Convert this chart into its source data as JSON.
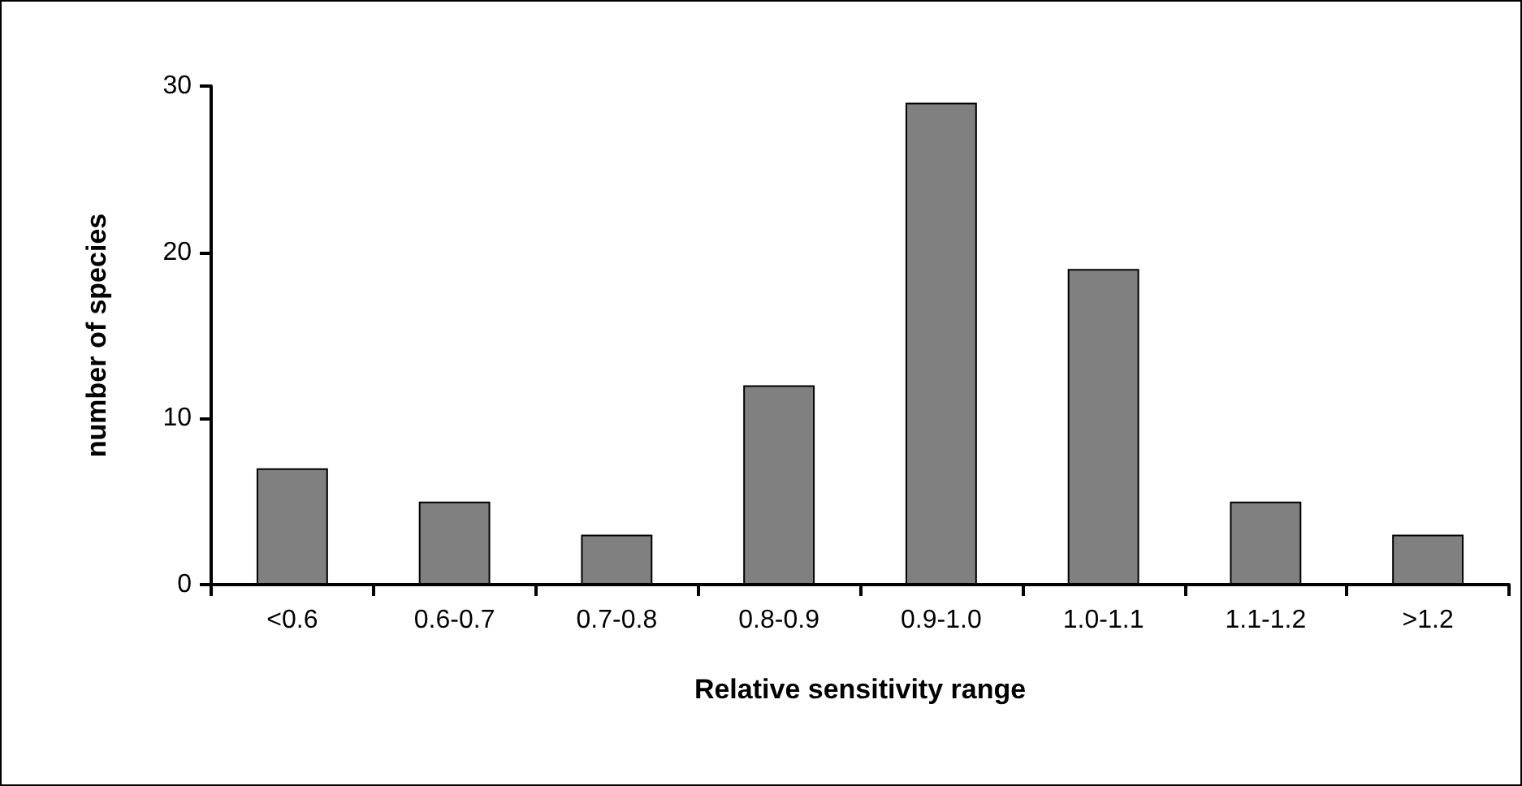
{
  "chart_data": {
    "type": "bar",
    "xlabel": "Relative sensitivity range",
    "ylabel": "number of species",
    "categories": [
      "<0.6",
      "0.6-0.7",
      "0.7-0.8",
      "0.8-0.9",
      "0.9-1.0",
      "1.0-1.1",
      "1.1-1.2",
      ">1.2"
    ],
    "values": [
      7,
      5,
      3,
      12,
      29,
      19,
      5,
      3
    ],
    "color": "#808080",
    "ylim": [
      0,
      30
    ],
    "yticks": [
      0,
      10,
      20,
      30
    ],
    "grid": false
  }
}
